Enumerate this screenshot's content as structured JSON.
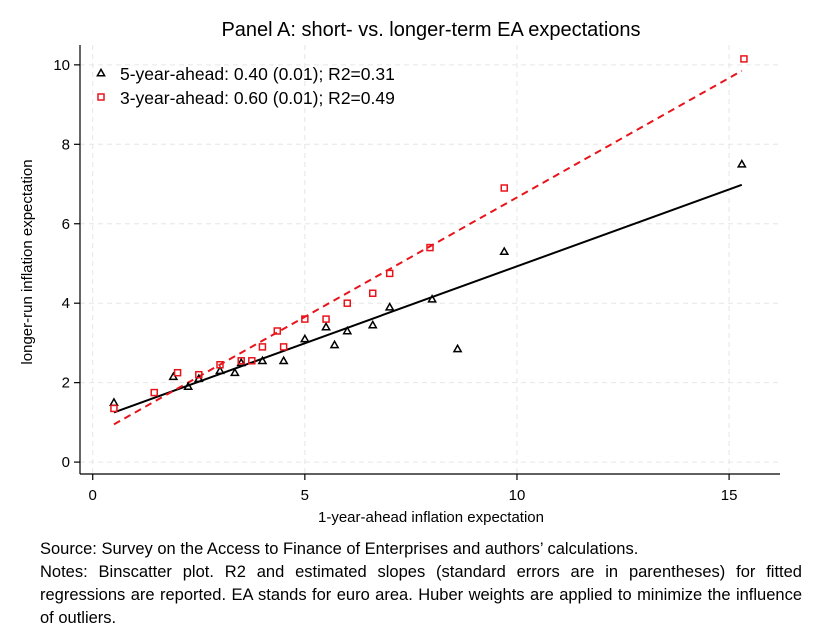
{
  "chart_data": {
    "type": "scatter",
    "title": "Panel A: short- vs. longer-term EA expectations",
    "xlabel": "1-year-ahead inflation expectation",
    "ylabel": "longer-run inflation expectation",
    "xlim": [
      -0.3,
      16.2
    ],
    "ylim": [
      -0.3,
      10.5
    ],
    "xticks": [
      0,
      5,
      10,
      15
    ],
    "yticks": [
      0,
      2,
      4,
      6,
      8,
      10
    ],
    "grid": true,
    "legend_position": "top-left",
    "series": [
      {
        "name": "5-year-ahead: 0.40 (0.01); R2=0.31",
        "marker": "triangle",
        "color": "#000000",
        "points": [
          [
            0.5,
            1.5
          ],
          [
            1.9,
            2.15
          ],
          [
            2.25,
            1.9
          ],
          [
            2.5,
            2.1
          ],
          [
            3.0,
            2.3
          ],
          [
            3.35,
            2.25
          ],
          [
            3.5,
            2.5
          ],
          [
            4.0,
            2.55
          ],
          [
            4.5,
            2.55
          ],
          [
            5.0,
            3.1
          ],
          [
            5.5,
            3.4
          ],
          [
            5.7,
            2.95
          ],
          [
            6.0,
            3.3
          ],
          [
            6.6,
            3.45
          ],
          [
            7.0,
            3.9
          ],
          [
            8.0,
            4.1
          ],
          [
            8.6,
            2.85
          ],
          [
            9.7,
            5.3
          ],
          [
            15.3,
            7.5
          ]
        ],
        "fit": {
          "x": [
            0.5,
            15.3
          ],
          "y": [
            1.25,
            6.98
          ],
          "style": "solid"
        }
      },
      {
        "name": "3-year-ahead: 0.60 (0.01); R2=0.49",
        "marker": "square",
        "color": "#e8141b",
        "points": [
          [
            0.5,
            1.35
          ],
          [
            1.45,
            1.75
          ],
          [
            2.0,
            2.25
          ],
          [
            2.5,
            2.2
          ],
          [
            3.0,
            2.45
          ],
          [
            3.5,
            2.55
          ],
          [
            3.75,
            2.55
          ],
          [
            4.0,
            2.9
          ],
          [
            4.35,
            3.3
          ],
          [
            4.5,
            2.9
          ],
          [
            5.0,
            3.6
          ],
          [
            5.5,
            3.6
          ],
          [
            6.0,
            4.0
          ],
          [
            6.6,
            4.25
          ],
          [
            7.0,
            4.75
          ],
          [
            7.95,
            5.4
          ],
          [
            9.7,
            6.9
          ],
          [
            15.35,
            10.15
          ]
        ],
        "fit": {
          "x": [
            0.5,
            15.3
          ],
          "y": [
            0.95,
            9.85
          ],
          "style": "dashed"
        }
      }
    ]
  },
  "notes": {
    "source": "Source: Survey on the Access to Finance of Enterprises and authors’ calculations.",
    "text": "Notes: Binscatter plot. R2 and estimated slopes (standard errors are in parentheses) for fitted regressions are reported. EA stands for euro area. Huber weights are applied to minimize the influence of outliers."
  }
}
